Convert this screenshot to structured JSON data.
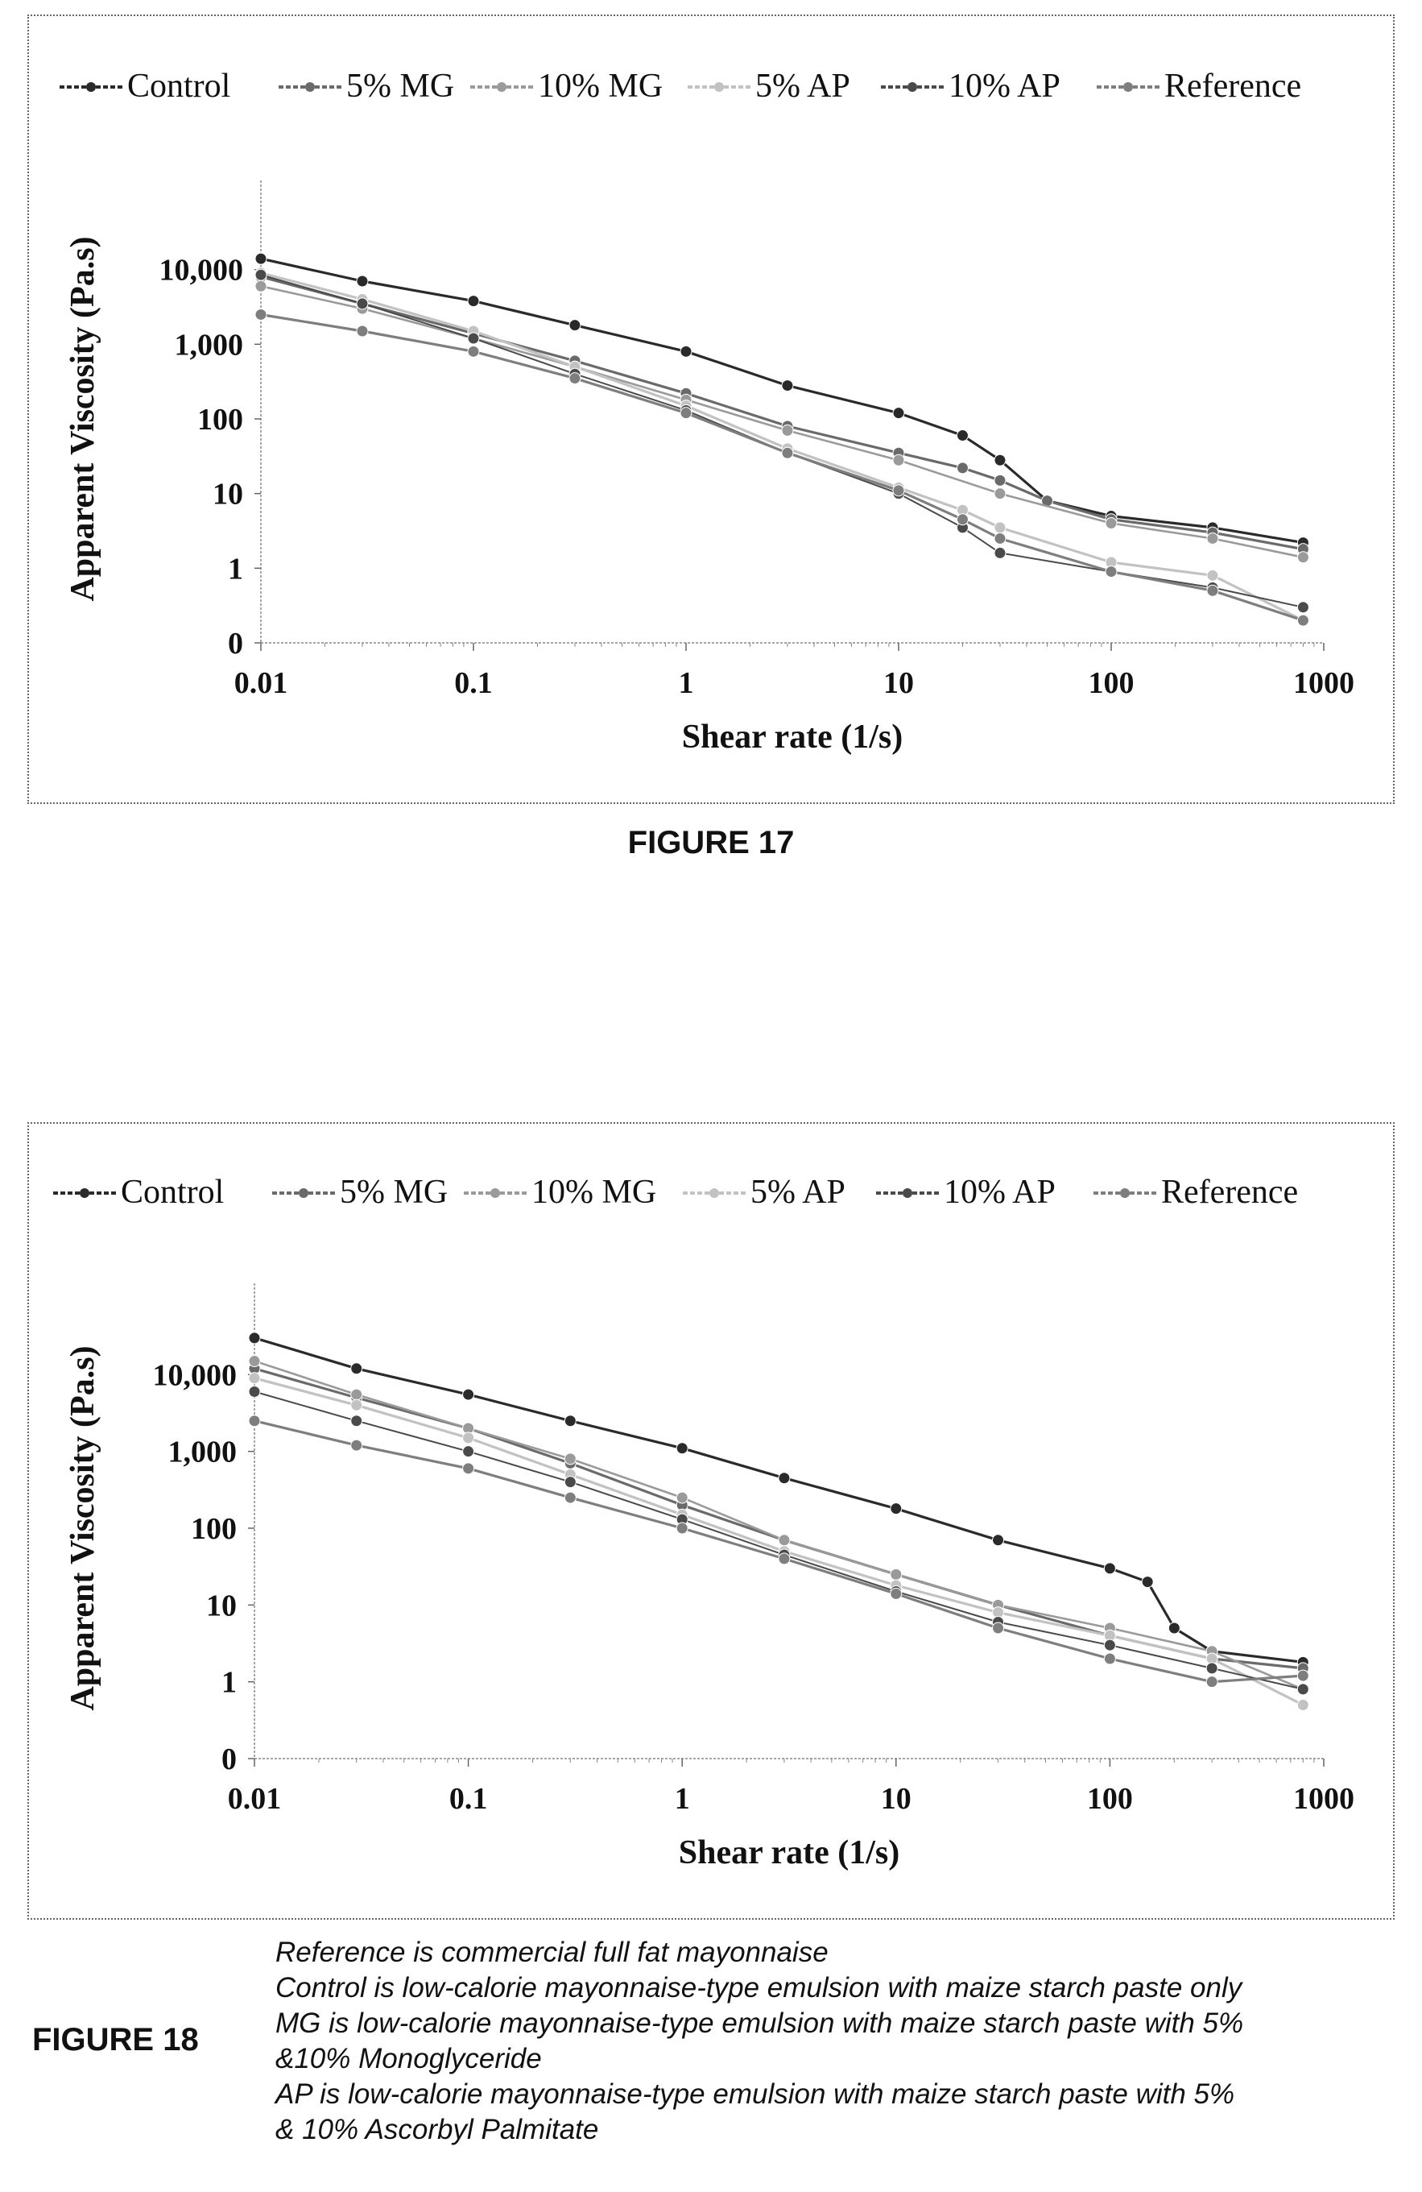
{
  "figures": {
    "fig17_label": "FIGURE 17",
    "fig18_label": "FIGURE 18"
  },
  "notes": [
    "Reference is commercial full fat mayonnaise",
    "Control is low-calorie mayonnaise-type emulsion with maize starch paste only",
    "MG is low-calorie mayonnaise-type emulsion with maize starch paste with 5%",
    "&10% Monoglyceride",
    "AP is low-calorie mayonnaise-type emulsion with maize starch paste with 5%",
    "& 10% Ascorbyl Palmitate"
  ],
  "chart_data": [
    {
      "type": "line",
      "figure": "FIGURE 17",
      "title": "",
      "xlabel": "Shear rate (1/s)",
      "ylabel": "Apparent Viscosity (Pa.s)",
      "xscale": "log",
      "yscale": "log",
      "xlim": [
        0.01,
        1000
      ],
      "ylim": [
        0.1,
        100000
      ],
      "xticks": [
        0.01,
        0.1,
        1,
        10,
        100,
        1000
      ],
      "xtick_labels": [
        "0.01",
        "0.1",
        "1",
        "10",
        "100",
        "1000"
      ],
      "yticks": [
        0.1,
        1,
        10,
        100,
        1000,
        10000
      ],
      "ytick_labels": [
        "0",
        "1",
        "10",
        "100",
        "1,000",
        "10,000"
      ],
      "legend_position": "top",
      "grid": false,
      "series": [
        {
          "name": "Control",
          "color": "#2a2a2a",
          "width": 3.2,
          "x": [
            0.01,
            0.03,
            0.1,
            0.3,
            1,
            3,
            10,
            20,
            30,
            50,
            100,
            300,
            800
          ],
          "y": [
            14000,
            7000,
            3800,
            1800,
            800,
            280,
            120,
            60,
            28,
            8,
            5,
            3.5,
            2.2
          ]
        },
        {
          "name": "5% MG",
          "color": "#6a6a6a",
          "width": 3.2,
          "x": [
            0.01,
            0.03,
            0.1,
            0.3,
            1,
            3,
            10,
            20,
            30,
            50,
            100,
            300,
            800
          ],
          "y": [
            8000,
            3500,
            1400,
            600,
            220,
            80,
            35,
            22,
            15,
            8,
            4.5,
            3,
            1.8
          ]
        },
        {
          "name": "10% MG",
          "color": "#9a9a9a",
          "width": 2.6,
          "x": [
            0.01,
            0.03,
            0.1,
            0.3,
            1,
            3,
            10,
            30,
            100,
            300,
            800
          ],
          "y": [
            6000,
            3000,
            1200,
            500,
            180,
            70,
            28,
            10,
            4,
            2.5,
            1.4
          ]
        },
        {
          "name": "5% AP",
          "color": "#c2c2c2",
          "width": 3.2,
          "x": [
            0.01,
            0.03,
            0.1,
            0.3,
            1,
            3,
            10,
            20,
            30,
            100,
            300,
            800
          ],
          "y": [
            9000,
            4000,
            1500,
            500,
            150,
            40,
            12,
            6,
            3.5,
            1.2,
            0.8,
            0.2
          ]
        },
        {
          "name": "10% AP",
          "color": "#4a4a4a",
          "width": 2.0,
          "x": [
            0.01,
            0.03,
            0.1,
            0.3,
            1,
            3,
            10,
            20,
            30,
            100,
            300,
            800
          ],
          "y": [
            8500,
            3500,
            1200,
            400,
            130,
            35,
            10,
            3.5,
            1.6,
            0.9,
            0.55,
            0.3
          ]
        },
        {
          "name": "Reference",
          "color": "#7e7e7e",
          "width": 3.2,
          "x": [
            0.01,
            0.03,
            0.1,
            0.3,
            1,
            3,
            10,
            20,
            30,
            100,
            300,
            800
          ],
          "y": [
            2500,
            1500,
            800,
            350,
            120,
            35,
            11,
            4.5,
            2.5,
            0.9,
            0.5,
            0.2
          ]
        }
      ]
    },
    {
      "type": "line",
      "figure": "FIGURE 18",
      "title": "",
      "xlabel": "Shear rate (1/s)",
      "ylabel": "Apparent Viscosity (Pa.s)",
      "xscale": "log",
      "yscale": "log",
      "xlim": [
        0.01,
        1000
      ],
      "ylim": [
        0.1,
        100000
      ],
      "xticks": [
        0.01,
        0.1,
        1,
        10,
        100,
        1000
      ],
      "xtick_labels": [
        "0.01",
        "0.1",
        "1",
        "10",
        "100",
        "1000"
      ],
      "yticks": [
        0.1,
        1,
        10,
        100,
        1000,
        10000
      ],
      "ytick_labels": [
        "0",
        "1",
        "10",
        "100",
        "1,000",
        "10,000"
      ],
      "legend_position": "top",
      "grid": false,
      "series": [
        {
          "name": "Control",
          "color": "#2a2a2a",
          "width": 3.2,
          "x": [
            0.01,
            0.03,
            0.1,
            0.3,
            1,
            3,
            10,
            30,
            100,
            150,
            200,
            300,
            800
          ],
          "y": [
            30000,
            12000,
            5500,
            2500,
            1100,
            450,
            180,
            70,
            30,
            20,
            5,
            2.5,
            1.8
          ]
        },
        {
          "name": "5% MG",
          "color": "#6a6a6a",
          "width": 3.2,
          "x": [
            0.01,
            0.03,
            0.1,
            0.3,
            1,
            3,
            10,
            30,
            100,
            300,
            800
          ],
          "y": [
            12000,
            5000,
            2000,
            700,
            200,
            70,
            25,
            10,
            4,
            2,
            1.5
          ]
        },
        {
          "name": "10% MG",
          "color": "#9a9a9a",
          "width": 2.6,
          "x": [
            0.01,
            0.03,
            0.1,
            0.3,
            1,
            3,
            10,
            30,
            100,
            300,
            800
          ],
          "y": [
            15000,
            5500,
            2000,
            800,
            250,
            70,
            25,
            10,
            5,
            2.5,
            0.8
          ]
        },
        {
          "name": "5% AP",
          "color": "#c2c2c2",
          "width": 3.2,
          "x": [
            0.01,
            0.03,
            0.1,
            0.3,
            1,
            3,
            10,
            30,
            100,
            300,
            800
          ],
          "y": [
            9000,
            4000,
            1500,
            500,
            150,
            50,
            18,
            8,
            4,
            2,
            0.5
          ]
        },
        {
          "name": "10% AP",
          "color": "#4a4a4a",
          "width": 2.0,
          "x": [
            0.01,
            0.03,
            0.1,
            0.3,
            1,
            3,
            10,
            30,
            100,
            300,
            800
          ],
          "y": [
            6000,
            2500,
            1000,
            400,
            130,
            45,
            15,
            6,
            3,
            1.5,
            0.8
          ]
        },
        {
          "name": "Reference",
          "color": "#7e7e7e",
          "width": 3.2,
          "x": [
            0.01,
            0.03,
            0.1,
            0.3,
            1,
            3,
            10,
            30,
            100,
            300,
            800
          ],
          "y": [
            2500,
            1200,
            600,
            250,
            100,
            40,
            14,
            5,
            2,
            1,
            1.2
          ]
        }
      ]
    }
  ]
}
